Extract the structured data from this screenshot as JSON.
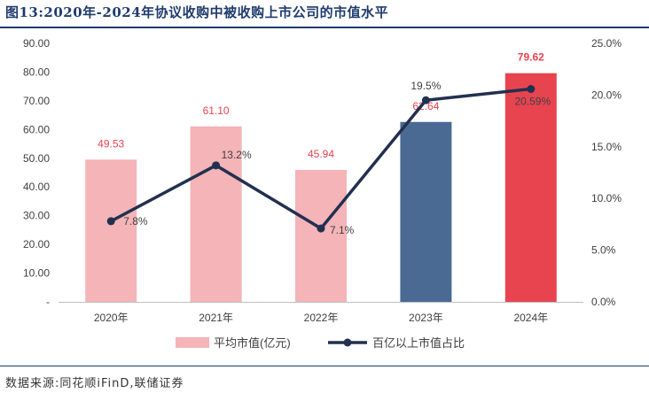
{
  "figure": {
    "title": "图13:2020年-2024年协议收购中被收购上市公司的市值水平",
    "source": "数据来源:同花顺iFinD,联储证券"
  },
  "chart_data": {
    "type": "bar+line",
    "categories": [
      "2020年",
      "2021年",
      "2022年",
      "2023年",
      "2024年"
    ],
    "series": [
      {
        "name": "平均市值(亿元)",
        "type": "bar",
        "axis": "left",
        "values": [
          49.53,
          61.1,
          45.94,
          62.64,
          79.62
        ],
        "labels": [
          "49.53",
          "61.10",
          "45.94",
          "62.64",
          "79.62"
        ],
        "colors": [
          "#f4b4b8",
          "#f4b4b8",
          "#f4b4b8",
          "#4a6a94",
          "#e8444f"
        ],
        "label_colors": [
          "#e8444f",
          "#e8444f",
          "#e8444f",
          "#e8444f",
          "#e8444f"
        ]
      },
      {
        "name": "百亿以上市值占比",
        "type": "line",
        "axis": "right",
        "values": [
          7.8,
          13.2,
          7.1,
          19.5,
          20.59
        ],
        "labels": [
          "7.8%",
          "13.2%",
          "7.1%",
          "19.5%",
          "20.59%"
        ],
        "color": "#22304f"
      }
    ],
    "y_left": {
      "min": 0,
      "max": 90,
      "ticks": [
        0,
        10,
        20,
        30,
        40,
        50,
        60,
        70,
        80,
        90
      ],
      "tick_labels": [
        "-",
        "10.00",
        "20.00",
        "30.00",
        "40.00",
        "50.00",
        "60.00",
        "70.00",
        "80.00",
        "90.00"
      ]
    },
    "y_right": {
      "min": 0,
      "max": 25,
      "ticks": [
        0,
        5,
        10,
        15,
        20,
        25
      ],
      "tick_labels": [
        "0.0%",
        "5.0%",
        "10.0%",
        "15.0%",
        "20.0%",
        "25.0%"
      ]
    },
    "legend": {
      "position": "bottom",
      "entries": [
        "平均市值(亿元)",
        "百亿以上市值占比"
      ]
    }
  }
}
